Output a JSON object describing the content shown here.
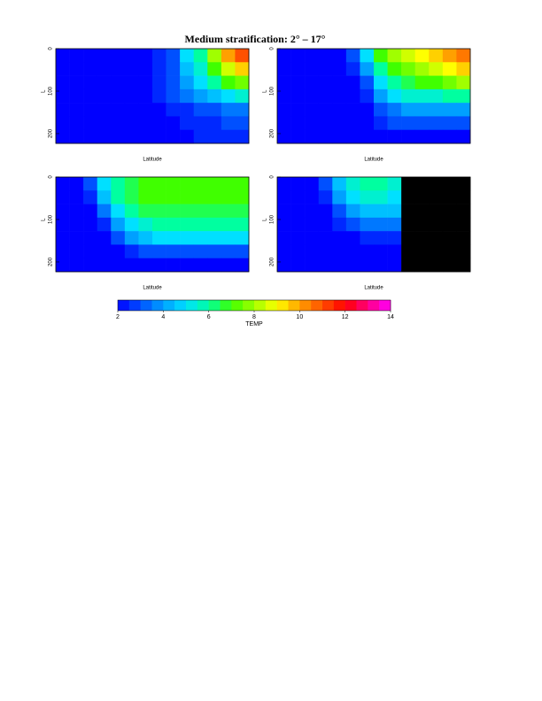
{
  "title": "Medium stratification: 2° – 17°",
  "colorbar": {
    "label": "TEMP",
    "lim": [
      2,
      14
    ],
    "ticks": [
      2,
      4,
      6,
      8,
      10,
      12,
      14
    ],
    "step": 0.5,
    "colors": [
      "#0000ff",
      "#0050ff",
      "#00a0ff",
      "#00e0ff",
      "#00ffa0",
      "#40ff00",
      "#a0ff00",
      "#ffff00",
      "#ffa000",
      "#ff5000",
      "#ff0000",
      "#ff0080",
      "#ff00ff"
    ],
    "mask_color": "#000000"
  },
  "chart_data": [
    {
      "type": "heatmap",
      "xlabel": "Latitude",
      "ylabel": "L",
      "ylim": [
        0,
        223
      ],
      "yticks": [
        0,
        100,
        200
      ],
      "values": [
        [
          2,
          2,
          2,
          2,
          2,
          2,
          2,
          2.5,
          3,
          5,
          6,
          8,
          10,
          11
        ],
        [
          2,
          2,
          2,
          2,
          2,
          2,
          2,
          2.5,
          3,
          4.5,
          5.5,
          7,
          8.5,
          9.5
        ],
        [
          2,
          2,
          2,
          2,
          2,
          2,
          2,
          2.5,
          3,
          4,
          5,
          6,
          7,
          7.5
        ],
        [
          2,
          2,
          2,
          2,
          2,
          2,
          2,
          2.5,
          3,
          3.5,
          4,
          4.5,
          5,
          5.5
        ],
        [
          2,
          2,
          2,
          2,
          2,
          2,
          2,
          2,
          2.5,
          2.5,
          3,
          3,
          3.5,
          3.5
        ],
        [
          2,
          2,
          2,
          2,
          2,
          2,
          2,
          2,
          2,
          2.5,
          2.5,
          2.5,
          3,
          3
        ],
        [
          2,
          2,
          2,
          2,
          2,
          2,
          2,
          2,
          2,
          2,
          2.5,
          2.5,
          2.5,
          2.5
        ]
      ]
    },
    {
      "type": "heatmap",
      "xlabel": "Latitude",
      "ylabel": "L",
      "ylim": [
        0,
        223
      ],
      "yticks": [
        0,
        100,
        200
      ],
      "values": [
        [
          2,
          2,
          2,
          2,
          2,
          3,
          5,
          7,
          8,
          8.5,
          9,
          9.5,
          10,
          10.5
        ],
        [
          2,
          2,
          2,
          2,
          2,
          2.5,
          4,
          6,
          7,
          7.5,
          8,
          8.5,
          9,
          9.5
        ],
        [
          2,
          2,
          2,
          2,
          2,
          2,
          3,
          5,
          6,
          6.5,
          7,
          7,
          7.5,
          8
        ],
        [
          2,
          2,
          2,
          2,
          2,
          2,
          2.5,
          4,
          5,
          5.5,
          5.5,
          5.5,
          6,
          6
        ],
        [
          2,
          2,
          2,
          2,
          2,
          2,
          2,
          3,
          3.5,
          4,
          4,
          4,
          4,
          4
        ],
        [
          2,
          2,
          2,
          2,
          2,
          2,
          2,
          2.5,
          3,
          3,
          3,
          3,
          3,
          3
        ],
        [
          2,
          2,
          2,
          2,
          2,
          2,
          2,
          2,
          2,
          2,
          2,
          2,
          2,
          2
        ]
      ]
    },
    {
      "type": "heatmap",
      "xlabel": "Latitude",
      "ylabel": "L",
      "ylim": [
        0,
        223
      ],
      "yticks": [
        0,
        100,
        200
      ],
      "values": [
        [
          2,
          2,
          3,
          5,
          6,
          6.5,
          7,
          7,
          7,
          7,
          7,
          7,
          7,
          7
        ],
        [
          2,
          2,
          2.5,
          4.5,
          6,
          6.5,
          7,
          7,
          7,
          7,
          7,
          7,
          7,
          7
        ],
        [
          2,
          2,
          2,
          3.5,
          5,
          6,
          6.5,
          6.5,
          6.5,
          6.5,
          6.5,
          6.5,
          6.5,
          6.5
        ],
        [
          2,
          2,
          2,
          2.5,
          4,
          5,
          5.5,
          6,
          6,
          6,
          6,
          6,
          6,
          6
        ],
        [
          2,
          2,
          2,
          2,
          3,
          4,
          4.5,
          5,
          5,
          5,
          5,
          5,
          5,
          5
        ],
        [
          2,
          2,
          2,
          2,
          2,
          2.5,
          3,
          3,
          3,
          3,
          3,
          3,
          3,
          3
        ],
        [
          2,
          2,
          2,
          2,
          2,
          2,
          2,
          2,
          2,
          2,
          2,
          2,
          2,
          2
        ]
      ]
    },
    {
      "type": "heatmap",
      "xlabel": "Latitude",
      "ylabel": "L",
      "ylim": [
        0,
        223
      ],
      "yticks": [
        0,
        100,
        200
      ],
      "values": [
        [
          2,
          2,
          2,
          3,
          4.5,
          5.5,
          6,
          6,
          5.5,
          null,
          null,
          null,
          null,
          null
        ],
        [
          2,
          2,
          2,
          2.5,
          4,
          5,
          5.5,
          5.5,
          5,
          null,
          null,
          null,
          null,
          null
        ],
        [
          2,
          2,
          2,
          2,
          3,
          4,
          4.5,
          4.5,
          4.5,
          null,
          null,
          null,
          null,
          null
        ],
        [
          2,
          2,
          2,
          2,
          2.5,
          3,
          3.5,
          3.5,
          3.5,
          null,
          null,
          null,
          null,
          null
        ],
        [
          2,
          2,
          2,
          2,
          2,
          2,
          2.5,
          2.5,
          2.5,
          null,
          null,
          null,
          null,
          null
        ],
        [
          2,
          2,
          2,
          2,
          2,
          2,
          2,
          2,
          2,
          null,
          null,
          null,
          null,
          null
        ],
        [
          2,
          2,
          2,
          2,
          2,
          2,
          2,
          2,
          2,
          null,
          null,
          null,
          null,
          null
        ]
      ]
    }
  ]
}
